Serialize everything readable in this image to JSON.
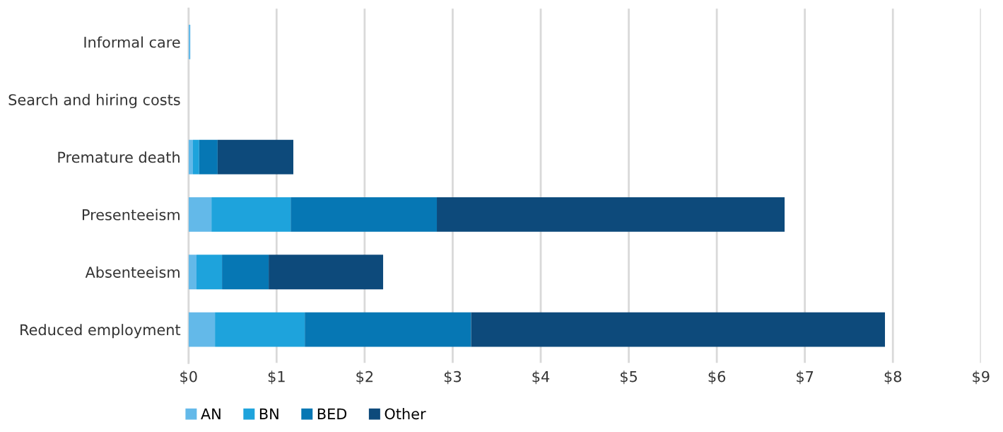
{
  "chart_data": {
    "type": "bar",
    "orientation": "horizontal",
    "stacked": true,
    "categories": [
      "Informal care",
      "Search and hiring costs",
      "Premature death",
      "Presenteeism",
      "Absenteeism",
      "Reduced employment"
    ],
    "series": [
      {
        "name": "AN",
        "color": "#63b9e9",
        "values": [
          0.02,
          0,
          0.05,
          0.26,
          0.09,
          0.3
        ]
      },
      {
        "name": "BN",
        "color": "#1ea3dc",
        "values": [
          0,
          0,
          0.07,
          0.9,
          0.29,
          1.02
        ]
      },
      {
        "name": "BED",
        "color": "#0677b4",
        "values": [
          0,
          0,
          0.21,
          1.66,
          0.53,
          1.89
        ]
      },
      {
        "name": "Other",
        "color": "#0d4a7b",
        "values": [
          0,
          0,
          0.86,
          3.95,
          1.3,
          4.7
        ]
      }
    ],
    "xlim": [
      0,
      9
    ],
    "xticks": [
      {
        "value": 0,
        "label": "$0"
      },
      {
        "value": 1,
        "label": "$1"
      },
      {
        "value": 2,
        "label": "$2"
      },
      {
        "value": 3,
        "label": "$3"
      },
      {
        "value": 4,
        "label": "$4"
      },
      {
        "value": 5,
        "label": "$5"
      },
      {
        "value": 6,
        "label": "$6"
      },
      {
        "value": 7,
        "label": "$7"
      },
      {
        "value": 8,
        "label": "$8"
      },
      {
        "value": 9,
        "label": "$9"
      }
    ],
    "grid": "x",
    "legend": "bottom left"
  }
}
